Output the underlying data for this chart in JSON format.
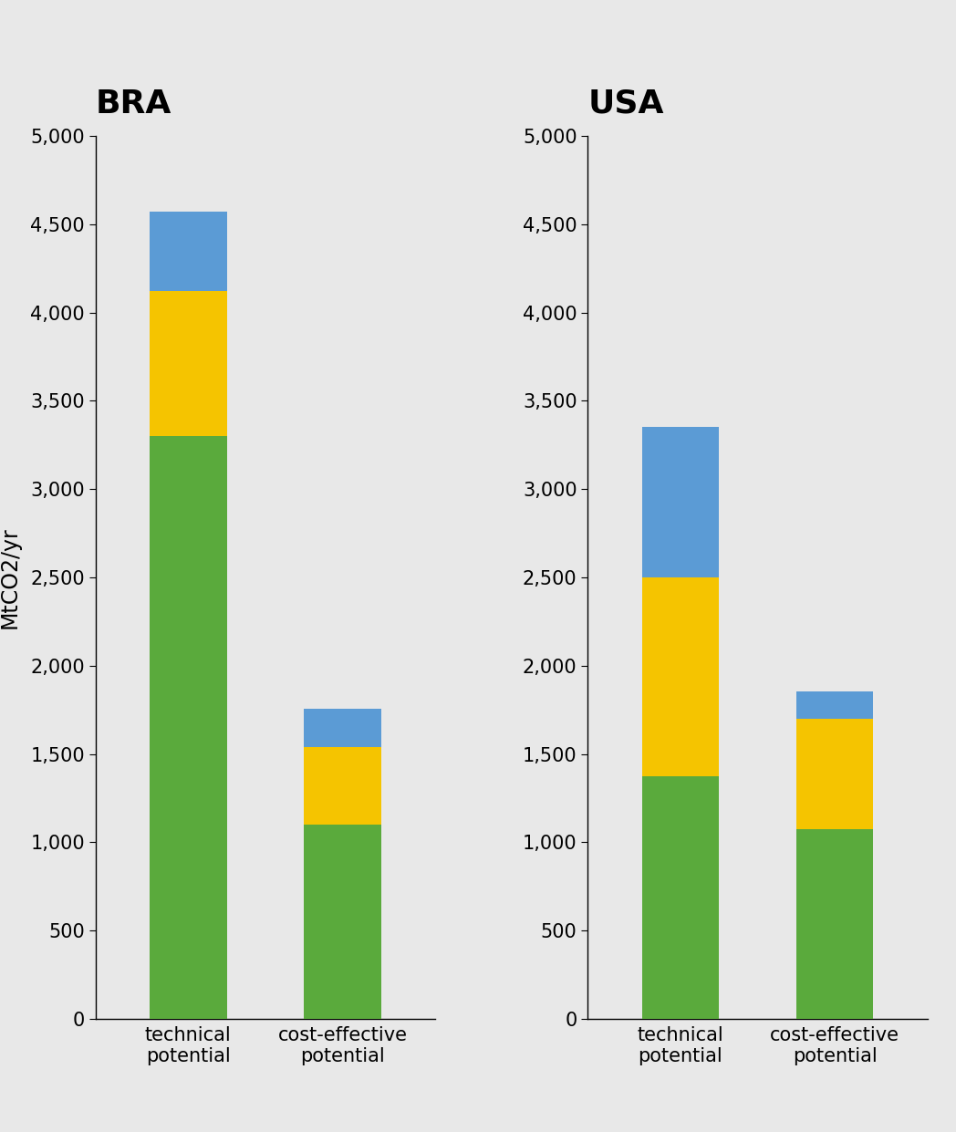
{
  "countries": [
    "BRA",
    "USA"
  ],
  "categories": [
    "technical\npotential",
    "cost-effective\npotential"
  ],
  "background_color": "#e8e8e8",
  "axes_color": "#e8e8e8",
  "bar_colors": {
    "green": "#5aaa3c",
    "yellow": "#f5c400",
    "blue": "#5b9bd5"
  },
  "bra": {
    "technical": {
      "green": 3300,
      "yellow": 820,
      "blue": 450
    },
    "cost_effective": {
      "green": 1100,
      "yellow": 440,
      "blue": 215
    }
  },
  "usa": {
    "technical": {
      "green": 1375,
      "yellow": 1125,
      "blue": 850
    },
    "cost_effective": {
      "green": 1075,
      "yellow": 625,
      "blue": 155
    }
  },
  "ylim": [
    0,
    5000
  ],
  "yticks": [
    0,
    500,
    1000,
    1500,
    2000,
    2500,
    3000,
    3500,
    4000,
    4500,
    5000
  ],
  "ylabel": "MtCO2/yr",
  "title_fontsize": 26,
  "ylabel_fontsize": 17,
  "tick_fontsize": 15,
  "xlabel_fontsize": 15
}
